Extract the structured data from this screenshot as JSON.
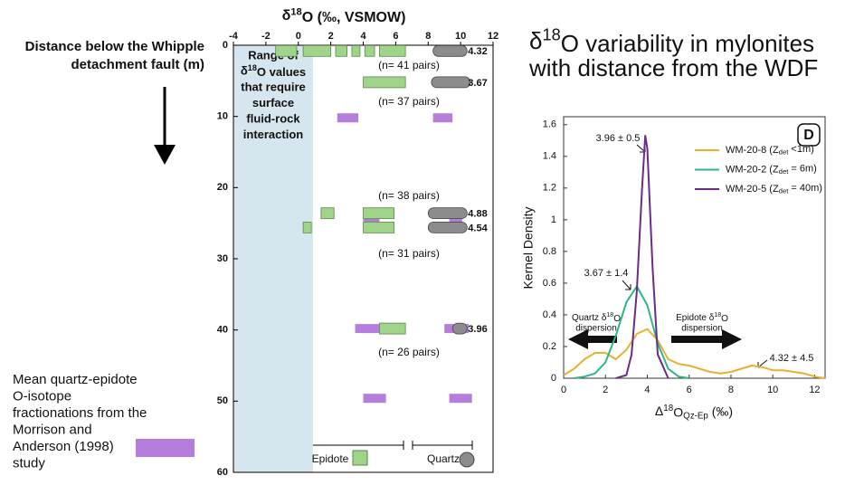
{
  "slide_title": {
    "line1": [
      "δ",
      "18",
      "O variability in mylonites"
    ],
    "line2": "with distance from the WDF"
  },
  "y_caption": [
    "Distance below the Whipple",
    "detachment fault (m)"
  ],
  "note": {
    "lines": [
      "Mean quartz-epidote",
      "O-isotope",
      "fractionations from the",
      "Morrison and",
      "Anderson (1998)",
      "study"
    ],
    "color": "#b57edc"
  },
  "chart_data": [
    {
      "type": "range",
      "title": [
        "δ",
        "18",
        "O (‰, VSMOW)"
      ],
      "xlim": [
        -4,
        12
      ],
      "xticks": [
        -4,
        -2,
        0,
        2,
        4,
        6,
        8,
        10,
        12
      ],
      "ylim": [
        0,
        60
      ],
      "yticks": [
        0,
        10,
        20,
        30,
        40,
        50,
        60
      ],
      "shaded": {
        "xlim": [
          -4,
          0.9
        ],
        "color": "#d6e6ee",
        "lines": [
          "Range of",
          [
            "δ",
            "18",
            "O values"
          ],
          "that require",
          "surface",
          "fluid-rock",
          "interaction"
        ]
      },
      "epidote_color": "#9fd48a",
      "quartz_color": "#8c8c8c",
      "fractionation_color": "#b57edc",
      "rows": [
        {
          "depth": 0.8,
          "epidote": [
            [
              -1.4,
              -0.1
            ],
            [
              0.3,
              2.0
            ],
            [
              2.3,
              3.0
            ],
            [
              3.3,
              3.8
            ],
            [
              4.1,
              4.7
            ],
            [
              5.0,
              6.6
            ]
          ],
          "quartz": [
            [
              8.3,
              10.4
            ]
          ],
          "label": 4.32
        },
        {
          "depth": 5.2,
          "epidote": [
            [
              4.0,
              6.6
            ]
          ],
          "quartz": [
            [
              8.2,
              10.6
            ]
          ],
          "label": 3.67
        },
        {
          "depth": 23.6,
          "epidote": [
            [
              1.4,
              2.2
            ],
            [
              4.0,
              5.9
            ]
          ],
          "quartz": [
            [
              8.0,
              10.4
            ]
          ],
          "label": 4.88
        },
        {
          "depth": 25.6,
          "epidote": [
            [
              0.3,
              0.8
            ],
            [
              4.0,
              5.9
            ]
          ],
          "quartz": [
            [
              8.0,
              10.4
            ]
          ],
          "label": 4.54
        },
        {
          "depth": 39.8,
          "epidote": [
            [
              5.0,
              6.6
            ]
          ],
          "quartz": [
            [
              9.5,
              10.4
            ]
          ],
          "label": 3.96
        }
      ],
      "fractionations": [
        {
          "depth": 10.2,
          "ranges": [
            [
              2.4,
              3.7
            ],
            [
              8.3,
              9.5
            ]
          ]
        },
        {
          "depth": 24.8,
          "ranges": [
            [
              4.0,
              5.0
            ],
            [
              9.3,
              10.1
            ]
          ]
        },
        {
          "depth": 39.8,
          "ranges": [
            [
              3.5,
              5.2
            ],
            [
              9.0,
              10.5
            ]
          ]
        },
        {
          "depth": 49.6,
          "ranges": [
            [
              4.0,
              5.4
            ],
            [
              9.3,
              10.7
            ]
          ]
        }
      ],
      "annotations": [
        "(n= 41 pairs)",
        "(n= 37 pairs)",
        "(n= 38 pairs)",
        "(n= 31 pairs)",
        "(n= 26 pairs)"
      ],
      "legend": [
        "Epidote",
        "Quartz"
      ]
    },
    {
      "type": "line",
      "xlabel": [
        "Δ",
        "18",
        "O",
        "Qz-Ep",
        " (‰)"
      ],
      "ylabel": "Kernel Density",
      "panel_label": "D",
      "xlim": [
        0,
        12.5
      ],
      "xticks": [
        0,
        2,
        4,
        6,
        8,
        10,
        12
      ],
      "ylim": [
        0,
        1.65
      ],
      "yticks": [
        0,
        0.2,
        0.4,
        0.6,
        0.8,
        1,
        1.2,
        1.4,
        1.6
      ],
      "series": [
        {
          "name": [
            "WM-20-8 (Z",
            "det",
            " <1m)"
          ],
          "color": "#e8b030",
          "x": [
            0,
            0.5,
            1,
            1.5,
            2,
            2.5,
            3,
            3.5,
            4,
            4.5,
            5,
            5.5,
            6,
            6.5,
            7,
            7.5,
            8,
            8.5,
            9,
            9.5,
            10,
            10.5,
            11,
            11.5,
            12,
            12.5
          ],
          "values": [
            0.02,
            0.06,
            0.12,
            0.16,
            0.16,
            0.12,
            0.18,
            0.28,
            0.31,
            0.24,
            0.12,
            0.09,
            0.08,
            0.06,
            0.04,
            0.03,
            0.04,
            0.06,
            0.08,
            0.07,
            0.05,
            0.05,
            0.04,
            0.03,
            0.01,
            0
          ]
        },
        {
          "name": [
            "WM-20-2 (Z",
            "det",
            " = 6m)"
          ],
          "color": "#2fb58a",
          "x": [
            0.5,
            1,
            1.5,
            2,
            2.5,
            3,
            3.5,
            4,
            4.5,
            5,
            5.5,
            6
          ],
          "values": [
            0,
            0.01,
            0.03,
            0.1,
            0.27,
            0.48,
            0.58,
            0.46,
            0.22,
            0.06,
            0.01,
            0
          ]
        },
        {
          "name": [
            "WM-20-5 (Z",
            "det",
            " = 40m)"
          ],
          "color": "#6a2b8a",
          "x": [
            2.5,
            3,
            3.25,
            3.5,
            3.75,
            3.9,
            4,
            4.25,
            4.5,
            5
          ],
          "values": [
            0,
            0.02,
            0.15,
            0.55,
            1.2,
            1.53,
            1.45,
            0.7,
            0.15,
            0
          ]
        }
      ],
      "annotations": [
        [
          "3.96 ± 0.5"
        ],
        [
          "3.67 ± 1.4"
        ],
        [
          [
            "Quartz δ",
            "18",
            "O"
          ],
          "dispersion"
        ],
        [
          [
            "Epidote δ",
            "18",
            "O"
          ],
          "dispersion"
        ],
        [
          "4.32 ± 4.5"
        ]
      ]
    }
  ]
}
